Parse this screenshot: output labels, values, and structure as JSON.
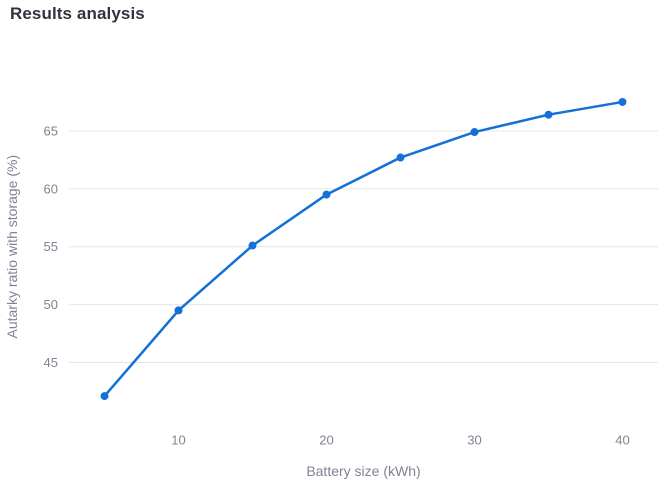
{
  "title": "Results analysis",
  "colors": {
    "line": "#1470d4",
    "grid": "#e6e6e9",
    "axis_text": "#7f8493",
    "title_text": "#31333f",
    "background": "#ffffff"
  },
  "chart_data": {
    "type": "line",
    "title": "",
    "xlabel": "Battery size (kWh)",
    "ylabel": "Autarky ratio with storage (%)",
    "x": [
      5,
      10,
      15,
      20,
      25,
      30,
      35,
      40
    ],
    "values": [
      42.1,
      49.5,
      55.1,
      59.5,
      62.7,
      64.9,
      66.4,
      67.5
    ],
    "series_name": "Autarky ratio with storage",
    "xticks": [
      10,
      20,
      30,
      40
    ],
    "yticks": [
      45,
      50,
      55,
      60,
      65
    ],
    "xlim": [
      2.6,
      42.4
    ],
    "ylim": [
      40,
      70
    ],
    "grid": "horizontal-only",
    "markers": true,
    "legend": "none"
  }
}
